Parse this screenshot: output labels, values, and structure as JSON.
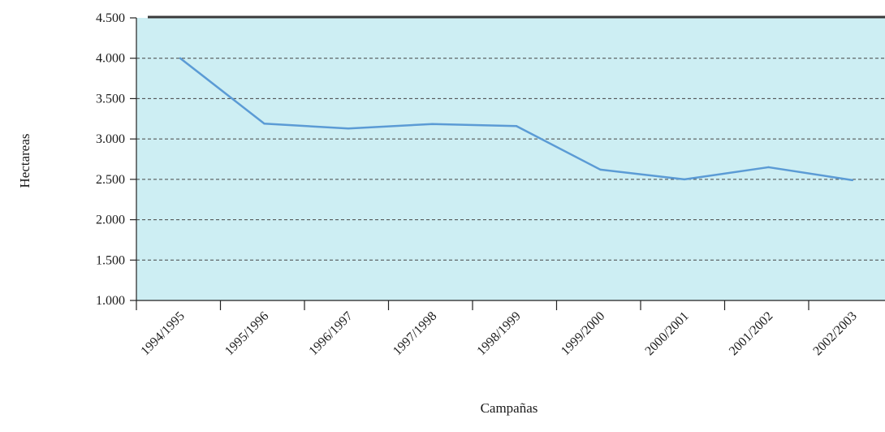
{
  "chart_data": {
    "type": "line",
    "title": "",
    "xlabel": "Campañas",
    "ylabel": "Hectareas",
    "categories": [
      "1994/1995",
      "1995/1996",
      "1996/1997",
      "1997/1998",
      "1998/1999",
      "1999/2000",
      "2000/2001",
      "2001/2002",
      "2002/2003"
    ],
    "series": [
      {
        "values": [
          4000,
          3190,
          3130,
          3185,
          3160,
          2620,
          2500,
          2650,
          2490
        ]
      }
    ],
    "ylim": [
      1000,
      4500
    ],
    "yticks": [
      "1.000",
      "1.500",
      "2.000",
      "2.500",
      "3.000",
      "3.500",
      "4.000",
      "4.500"
    ],
    "ytick_values": [
      1000,
      1500,
      2000,
      2500,
      3000,
      3500,
      4000,
      4500
    ],
    "grid": true,
    "legend": "none",
    "colors": {
      "plot_background": "#cdeef3",
      "line": "#5b9bd5",
      "grid": "#444444",
      "axis": "#222222"
    }
  }
}
